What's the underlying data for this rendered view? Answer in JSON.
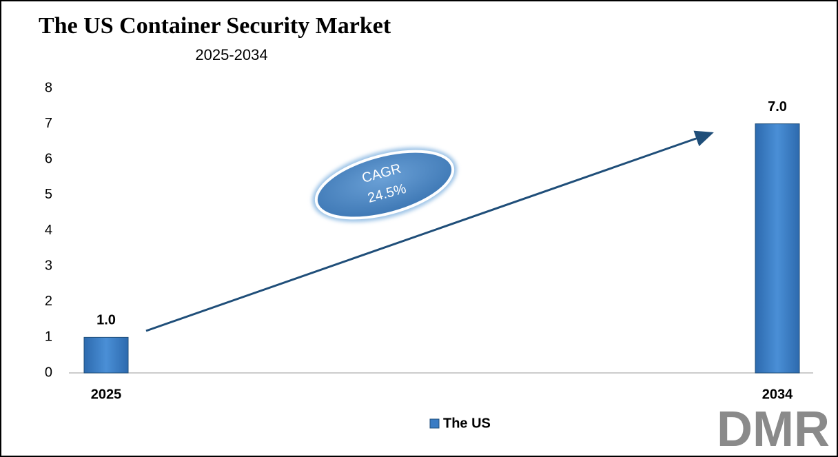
{
  "chart_data": {
    "type": "bar",
    "title": "The US Container Security Market",
    "subtitle": "2025-2034",
    "categories": [
      "2025",
      "2034"
    ],
    "series": [
      {
        "name": "The US",
        "color": "#3a7cc4",
        "values": [
          1,
          7
        ],
        "value_labels": [
          "1.0",
          "7.0"
        ]
      }
    ],
    "ylim": [
      0,
      8
    ],
    "yticks": [
      0,
      1,
      2,
      3,
      4,
      5,
      6,
      7,
      8
    ],
    "grid": false,
    "annotation": {
      "label": "CAGR",
      "value": "24.5%"
    },
    "legend": "bottom",
    "logo": "DMR"
  }
}
